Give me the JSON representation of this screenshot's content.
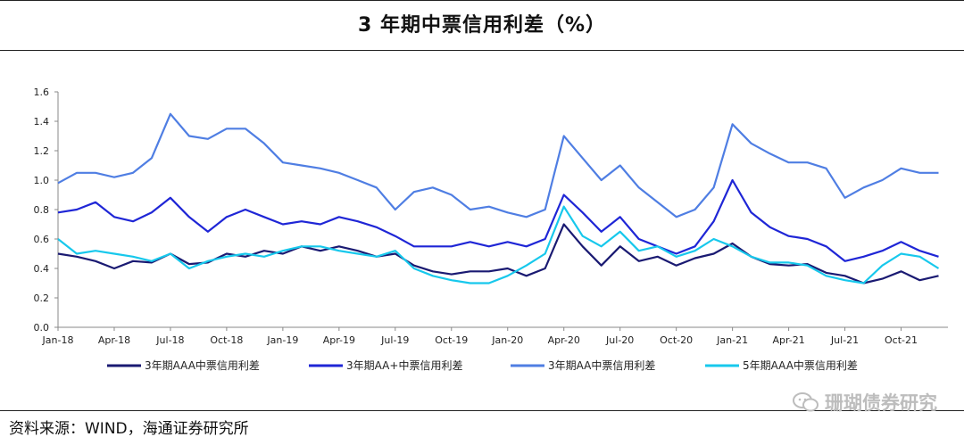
{
  "header": {
    "title": "3 年期中票信用利差（%）"
  },
  "footer": {
    "source": "资料来源：WIND，海通证券研究所"
  },
  "watermark": {
    "text": "珊瑚债券研究",
    "icon": "wechat-icon"
  },
  "chart_data": {
    "type": "line",
    "title": "3 年期中票信用利差（%）",
    "ylim": [
      0.0,
      1.6
    ],
    "yticks": [
      "0.0",
      "0.2",
      "0.4",
      "0.6",
      "0.8",
      "1.0",
      "1.2",
      "1.4",
      "1.6"
    ],
    "xlim": [
      0,
      47.5
    ],
    "xticks": [
      {
        "label": "Jan-18",
        "x": 0
      },
      {
        "label": "Apr-18",
        "x": 3
      },
      {
        "label": "Jul-18",
        "x": 6
      },
      {
        "label": "Oct-18",
        "x": 9
      },
      {
        "label": "Jan-19",
        "x": 12
      },
      {
        "label": "Apr-19",
        "x": 15
      },
      {
        "label": "Jul-19",
        "x": 18
      },
      {
        "label": "Oct-19",
        "x": 21
      },
      {
        "label": "Jan-20",
        "x": 24
      },
      {
        "label": "Apr-20",
        "x": 27
      },
      {
        "label": "Jul-20",
        "x": 30
      },
      {
        "label": "Oct-20",
        "x": 33
      },
      {
        "label": "Jan-21",
        "x": 36
      },
      {
        "label": "Apr-21",
        "x": 39
      },
      {
        "label": "Jul-21",
        "x": 42
      },
      {
        "label": "Oct-21",
        "x": 45
      }
    ],
    "x": [
      0,
      1,
      2,
      3,
      4,
      5,
      6,
      7,
      8,
      9,
      10,
      11,
      12,
      13,
      14,
      15,
      16,
      17,
      18,
      19,
      20,
      21,
      22,
      23,
      24,
      25,
      26,
      27,
      28,
      29,
      30,
      31,
      32,
      33,
      34,
      35,
      36,
      37,
      38,
      39,
      40,
      41,
      42,
      43,
      44,
      45,
      46,
      47
    ],
    "series": [
      {
        "name": "3年期AAA中票信用利差",
        "color": "#1a1a72",
        "values": [
          0.5,
          0.48,
          0.45,
          0.4,
          0.45,
          0.44,
          0.5,
          0.43,
          0.44,
          0.5,
          0.48,
          0.52,
          0.5,
          0.55,
          0.52,
          0.55,
          0.52,
          0.48,
          0.5,
          0.42,
          0.38,
          0.36,
          0.38,
          0.38,
          0.4,
          0.35,
          0.4,
          0.7,
          0.55,
          0.42,
          0.55,
          0.45,
          0.48,
          0.42,
          0.47,
          0.5,
          0.57,
          0.48,
          0.43,
          0.42,
          0.43,
          0.37,
          0.35,
          0.3,
          0.33,
          0.38,
          0.32,
          0.35
        ]
      },
      {
        "name": "3年期AA+中票信用利差",
        "color": "#1f26d6",
        "values": [
          0.78,
          0.8,
          0.85,
          0.75,
          0.72,
          0.78,
          0.88,
          0.75,
          0.65,
          0.75,
          0.8,
          0.75,
          0.7,
          0.72,
          0.7,
          0.75,
          0.72,
          0.68,
          0.62,
          0.55,
          0.55,
          0.55,
          0.58,
          0.55,
          0.58,
          0.55,
          0.6,
          0.9,
          0.78,
          0.65,
          0.75,
          0.6,
          0.55,
          0.5,
          0.55,
          0.72,
          1.0,
          0.78,
          0.68,
          0.62,
          0.6,
          0.55,
          0.45,
          0.48,
          0.52,
          0.58,
          0.52,
          0.48
        ]
      },
      {
        "name": "3年期AA中票信用利差",
        "color": "#4f7ee3",
        "values": [
          0.98,
          1.05,
          1.05,
          1.02,
          1.05,
          1.15,
          1.45,
          1.3,
          1.28,
          1.35,
          1.35,
          1.25,
          1.12,
          1.1,
          1.08,
          1.05,
          1.0,
          0.95,
          0.8,
          0.92,
          0.95,
          0.9,
          0.8,
          0.82,
          0.78,
          0.75,
          0.8,
          1.3,
          1.15,
          1.0,
          1.1,
          0.95,
          0.85,
          0.75,
          0.8,
          0.95,
          1.38,
          1.25,
          1.18,
          1.12,
          1.12,
          1.08,
          0.88,
          0.95,
          1.0,
          1.08,
          1.05,
          1.05
        ]
      },
      {
        "name": "5年期AAA中票信用利差",
        "color": "#17c8ec",
        "values": [
          0.6,
          0.5,
          0.52,
          0.5,
          0.48,
          0.45,
          0.5,
          0.4,
          0.45,
          0.48,
          0.5,
          0.48,
          0.52,
          0.55,
          0.55,
          0.52,
          0.5,
          0.48,
          0.52,
          0.4,
          0.35,
          0.32,
          0.3,
          0.3,
          0.35,
          0.42,
          0.5,
          0.82,
          0.62,
          0.55,
          0.65,
          0.52,
          0.55,
          0.48,
          0.52,
          0.6,
          0.55,
          0.48,
          0.44,
          0.44,
          0.42,
          0.35,
          0.32,
          0.3,
          0.42,
          0.5,
          0.48,
          0.4
        ]
      }
    ],
    "legend_position": "bottom",
    "grid": false
  }
}
